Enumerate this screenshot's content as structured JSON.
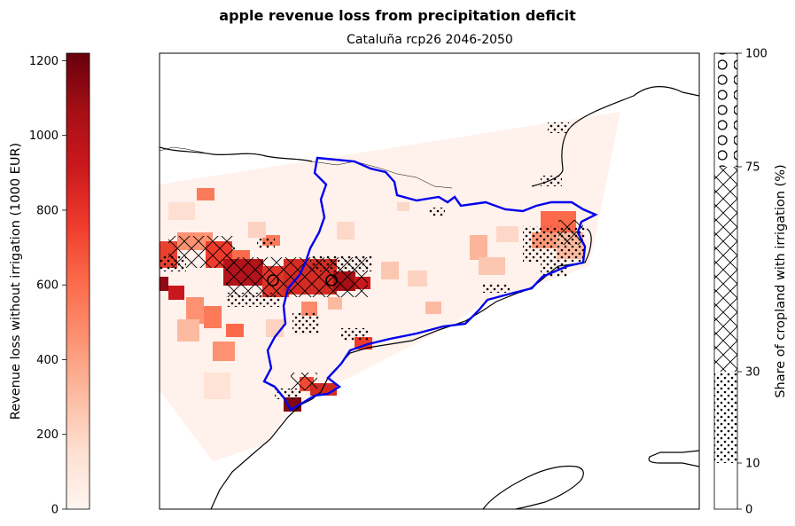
{
  "suptitle": "apple revenue loss from precipitation deficit",
  "subtitle": "Cataluña rcp26 2046-2050",
  "left_colorbar": {
    "label": "Revenue loss without irrigation (1000 EUR)",
    "min": 0,
    "max": 1220,
    "ticks": [
      "0",
      "200",
      "400",
      "600",
      "800",
      "1000",
      "1200"
    ],
    "colormap": "Reds"
  },
  "right_colorbar": {
    "label": "Share of cropland with irrigation (%)",
    "ticks": [
      "0",
      "10",
      "30",
      "75",
      "100"
    ],
    "bands": [
      {
        "from": 0,
        "to": 10,
        "hatch": "none"
      },
      {
        "from": 10,
        "to": 30,
        "hatch": "dots"
      },
      {
        "from": 30,
        "to": 75,
        "hatch": "crosshatch"
      },
      {
        "from": 75,
        "to": 100,
        "hatch": "circles"
      }
    ]
  },
  "map": {
    "region_outline_color": "#0000ee",
    "coastline_color": "#000000"
  }
}
